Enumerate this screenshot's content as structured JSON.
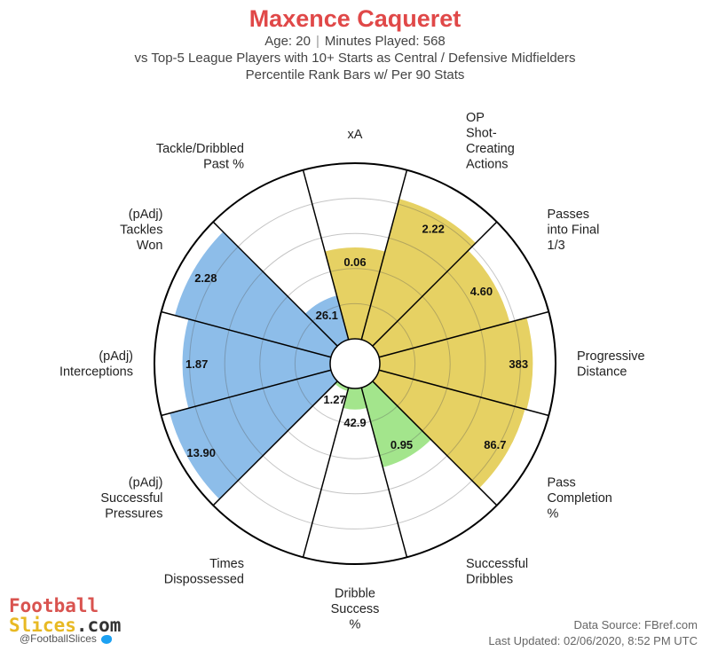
{
  "header": {
    "title": "Maxence Caqueret",
    "age_text": "Age: 20",
    "separator": "|",
    "minutes_text": "Minutes Played: 568",
    "comparison_text": "vs Top-5 League Players with 10+ Starts as Central / Defensive Midfielders",
    "method_text": "Percentile Rank Bars w/ Per 90 Stats"
  },
  "chart_data": {
    "type": "polar-bar",
    "title": "Maxence Caqueret",
    "rlim": [
      0,
      100
    ],
    "grid": true,
    "categories": [
      {
        "label_lines": [
          "xA"
        ],
        "value_text": "0.06",
        "percentile": 52,
        "group": "attacking"
      },
      {
        "label_lines": [
          "OP",
          "Shot-",
          "Creating",
          "Actions"
        ],
        "value_text": "2.22",
        "percentile": 83,
        "group": "attacking"
      },
      {
        "label_lines": [
          "Passes",
          "into Final",
          "1/3"
        ],
        "value_text": "4.60",
        "percentile": 77,
        "group": "attacking"
      },
      {
        "label_lines": [
          "Progressive",
          "Distance"
        ],
        "value_text": "383",
        "percentile": 87,
        "group": "attacking"
      },
      {
        "label_lines": [
          "Pass",
          "Completion",
          "%"
        ],
        "value_text": "86.7",
        "percentile": 86,
        "group": "attacking"
      },
      {
        "label_lines": [
          "Successful",
          "Dribbles"
        ],
        "value_text": "0.95",
        "percentile": 47,
        "group": "possession"
      },
      {
        "label_lines": [
          "Dribble",
          "Success",
          "%"
        ],
        "value_text": "42.9",
        "percentile": 12,
        "group": "possession"
      },
      {
        "label_lines": [
          "Times",
          "Dispossessed"
        ],
        "value_text": "1.27",
        "percentile": 2,
        "group": "possession"
      },
      {
        "label_lines": [
          "(pAdj)",
          "Successful",
          "Pressures"
        ],
        "value_text": "13.90",
        "percentile": 95,
        "group": "defending"
      },
      {
        "label_lines": [
          "(pAdj)",
          "Interceptions"
        ],
        "value_text": "1.87",
        "percentile": 84,
        "group": "defending"
      },
      {
        "label_lines": [
          "(pAdj)",
          "Tackles",
          "Won"
        ],
        "value_text": "2.28",
        "percentile": 92,
        "group": "defending"
      },
      {
        "label_lines": [
          "Tackle/Dribbled",
          "Past %"
        ],
        "value_text": "26.1",
        "percentile": 26,
        "group": "defending"
      }
    ],
    "colors": {
      "attacking": "#e6d163",
      "possession": "#a3e58c",
      "defending": "#8dbde9"
    }
  },
  "branding": {
    "logo_line1": "Football",
    "logo_line2_a": "Slices",
    "logo_line2_b": ".com",
    "handle": "@FootballSlices"
  },
  "footer": {
    "source": "Data Source: FBref.com",
    "updated": "Last Updated: 02/06/2020, 8:52 PM UTC"
  }
}
